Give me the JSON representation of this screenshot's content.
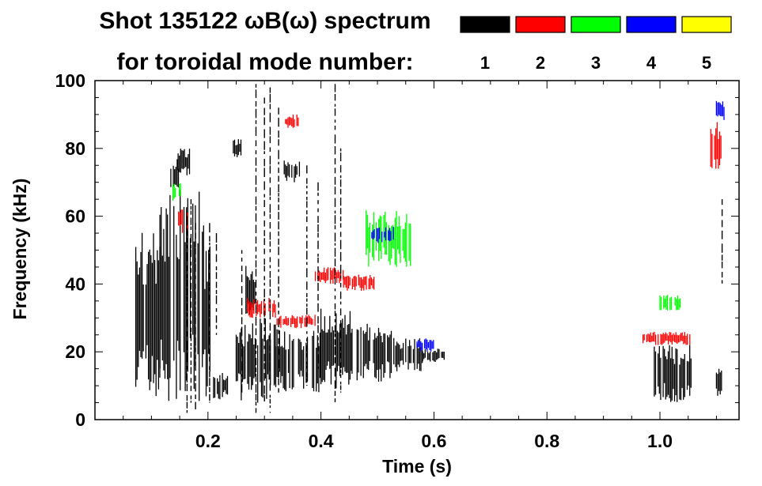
{
  "chart_data": {
    "type": "heatmap",
    "title_line1": "Shot 135122 ωB(ω) spectrum",
    "title_line2": "for toroidal mode number:",
    "xlabel": "Time (s)",
    "ylabel": "Frequency (kHz)",
    "xlim": [
      0.0,
      1.14
    ],
    "ylim": [
      0,
      100
    ],
    "x_ticks": [
      {
        "value": 0.2,
        "label": "0.2"
      },
      {
        "value": 0.4,
        "label": "0.4"
      },
      {
        "value": 0.6,
        "label": "0.6"
      },
      {
        "value": 0.8,
        "label": "0.8"
      },
      {
        "value": 1.0,
        "label": "1.0"
      }
    ],
    "y_ticks": [
      {
        "value": 0,
        "label": "0"
      },
      {
        "value": 20,
        "label": "20"
      },
      {
        "value": 40,
        "label": "40"
      },
      {
        "value": 60,
        "label": "60"
      },
      {
        "value": 80,
        "label": "80"
      },
      {
        "value": 100,
        "label": "100"
      }
    ],
    "legend": [
      {
        "n": "1",
        "color": "#000000"
      },
      {
        "n": "2",
        "color": "#ff0000"
      },
      {
        "n": "3",
        "color": "#00ff00"
      },
      {
        "n": "4",
        "color": "#0000ff"
      },
      {
        "n": "5",
        "color": "#ffff00"
      }
    ],
    "legend_placement": "top-right",
    "regions": [
      {
        "n": 1,
        "t0": 0.07,
        "t1": 0.115,
        "f0": 6,
        "f1": 56
      },
      {
        "n": 1,
        "t0": 0.115,
        "t1": 0.185,
        "f0": 3,
        "f1": 68
      },
      {
        "n": 1,
        "t0": 0.19,
        "t1": 0.205,
        "f0": 2,
        "f1": 58
      },
      {
        "n": 1,
        "t0": 0.245,
        "t1": 0.26,
        "f0": 77,
        "f1": 83
      },
      {
        "n": 1,
        "t0": 0.145,
        "t1": 0.175,
        "f0": 72,
        "f1": 80
      },
      {
        "n": 1,
        "t0": 0.132,
        "t1": 0.148,
        "f0": 68,
        "f1": 77
      },
      {
        "n": 1,
        "t0": 0.21,
        "t1": 0.235,
        "f0": 6,
        "f1": 14
      },
      {
        "n": 1,
        "t0": 0.25,
        "t1": 0.32,
        "f0": 5,
        "f1": 30
      },
      {
        "n": 1,
        "t0": 0.32,
        "t1": 0.4,
        "f0": 8,
        "f1": 27
      },
      {
        "n": 1,
        "t0": 0.4,
        "t1": 0.455,
        "f0": 9,
        "f1": 33
      },
      {
        "n": 1,
        "t0": 0.455,
        "t1": 0.53,
        "f0": 11,
        "f1": 29
      },
      {
        "n": 1,
        "t0": 0.53,
        "t1": 0.58,
        "f0": 14,
        "f1": 24
      },
      {
        "n": 1,
        "t0": 0.58,
        "t1": 0.625,
        "f0": 17,
        "f1": 21
      },
      {
        "n": 1,
        "t0": 0.265,
        "t1": 0.285,
        "f0": 30,
        "f1": 46
      },
      {
        "n": 1,
        "t0": 0.335,
        "t1": 0.365,
        "f0": 70,
        "f1": 77
      },
      {
        "n": 1,
        "t0": 0.99,
        "t1": 1.055,
        "f0": 5,
        "f1": 22
      },
      {
        "n": 1,
        "t0": 1.1,
        "t1": 1.115,
        "f0": 7,
        "f1": 15
      },
      {
        "n": 2,
        "t0": 0.148,
        "t1": 0.168,
        "f0": 55,
        "f1": 63
      },
      {
        "n": 2,
        "t0": 0.335,
        "t1": 0.36,
        "f0": 86,
        "f1": 90
      },
      {
        "n": 2,
        "t0": 0.27,
        "t1": 0.32,
        "f0": 30,
        "f1": 36
      },
      {
        "n": 2,
        "t0": 0.32,
        "t1": 0.39,
        "f0": 27,
        "f1": 31
      },
      {
        "n": 2,
        "t0": 0.39,
        "t1": 0.44,
        "f0": 40,
        "f1": 45
      },
      {
        "n": 2,
        "t0": 0.44,
        "t1": 0.495,
        "f0": 38,
        "f1": 43
      },
      {
        "n": 2,
        "t0": 0.97,
        "t1": 1.055,
        "f0": 22,
        "f1": 26
      },
      {
        "n": 2,
        "t0": 1.09,
        "t1": 1.11,
        "f0": 73,
        "f1": 88
      },
      {
        "n": 3,
        "t0": 0.48,
        "t1": 0.56,
        "f0": 45,
        "f1": 62
      },
      {
        "n": 3,
        "t0": 1.0,
        "t1": 1.04,
        "f0": 32,
        "f1": 37
      },
      {
        "n": 3,
        "t0": 0.138,
        "t1": 0.152,
        "f0": 64,
        "f1": 70
      },
      {
        "n": 4,
        "t0": 0.49,
        "t1": 0.53,
        "f0": 52,
        "f1": 57
      },
      {
        "n": 4,
        "t0": 1.1,
        "t1": 1.115,
        "f0": 88,
        "f1": 94
      },
      {
        "n": 4,
        "t0": 0.57,
        "t1": 0.6,
        "f0": 20,
        "f1": 24
      }
    ],
    "spikes": [
      {
        "t": 0.285,
        "f0": 2,
        "f1": 99
      },
      {
        "t": 0.3,
        "f0": 5,
        "f1": 95
      },
      {
        "t": 0.31,
        "f0": 2,
        "f1": 98
      },
      {
        "t": 0.325,
        "f0": 8,
        "f1": 92
      },
      {
        "t": 0.425,
        "f0": 5,
        "f1": 99
      },
      {
        "t": 0.435,
        "f0": 8,
        "f1": 80
      },
      {
        "t": 0.375,
        "f0": 10,
        "f1": 75
      },
      {
        "t": 0.395,
        "f0": 15,
        "f1": 70
      },
      {
        "t": 0.163,
        "f0": 2,
        "f1": 60
      },
      {
        "t": 0.17,
        "f0": 5,
        "f1": 65
      },
      {
        "t": 0.178,
        "f0": 3,
        "f1": 58
      },
      {
        "t": 0.203,
        "f0": 5,
        "f1": 58
      },
      {
        "t": 0.215,
        "f0": 25,
        "f1": 55
      },
      {
        "t": 0.26,
        "f0": 8,
        "f1": 50
      },
      {
        "t": 1.11,
        "f0": 40,
        "f1": 65
      }
    ]
  }
}
